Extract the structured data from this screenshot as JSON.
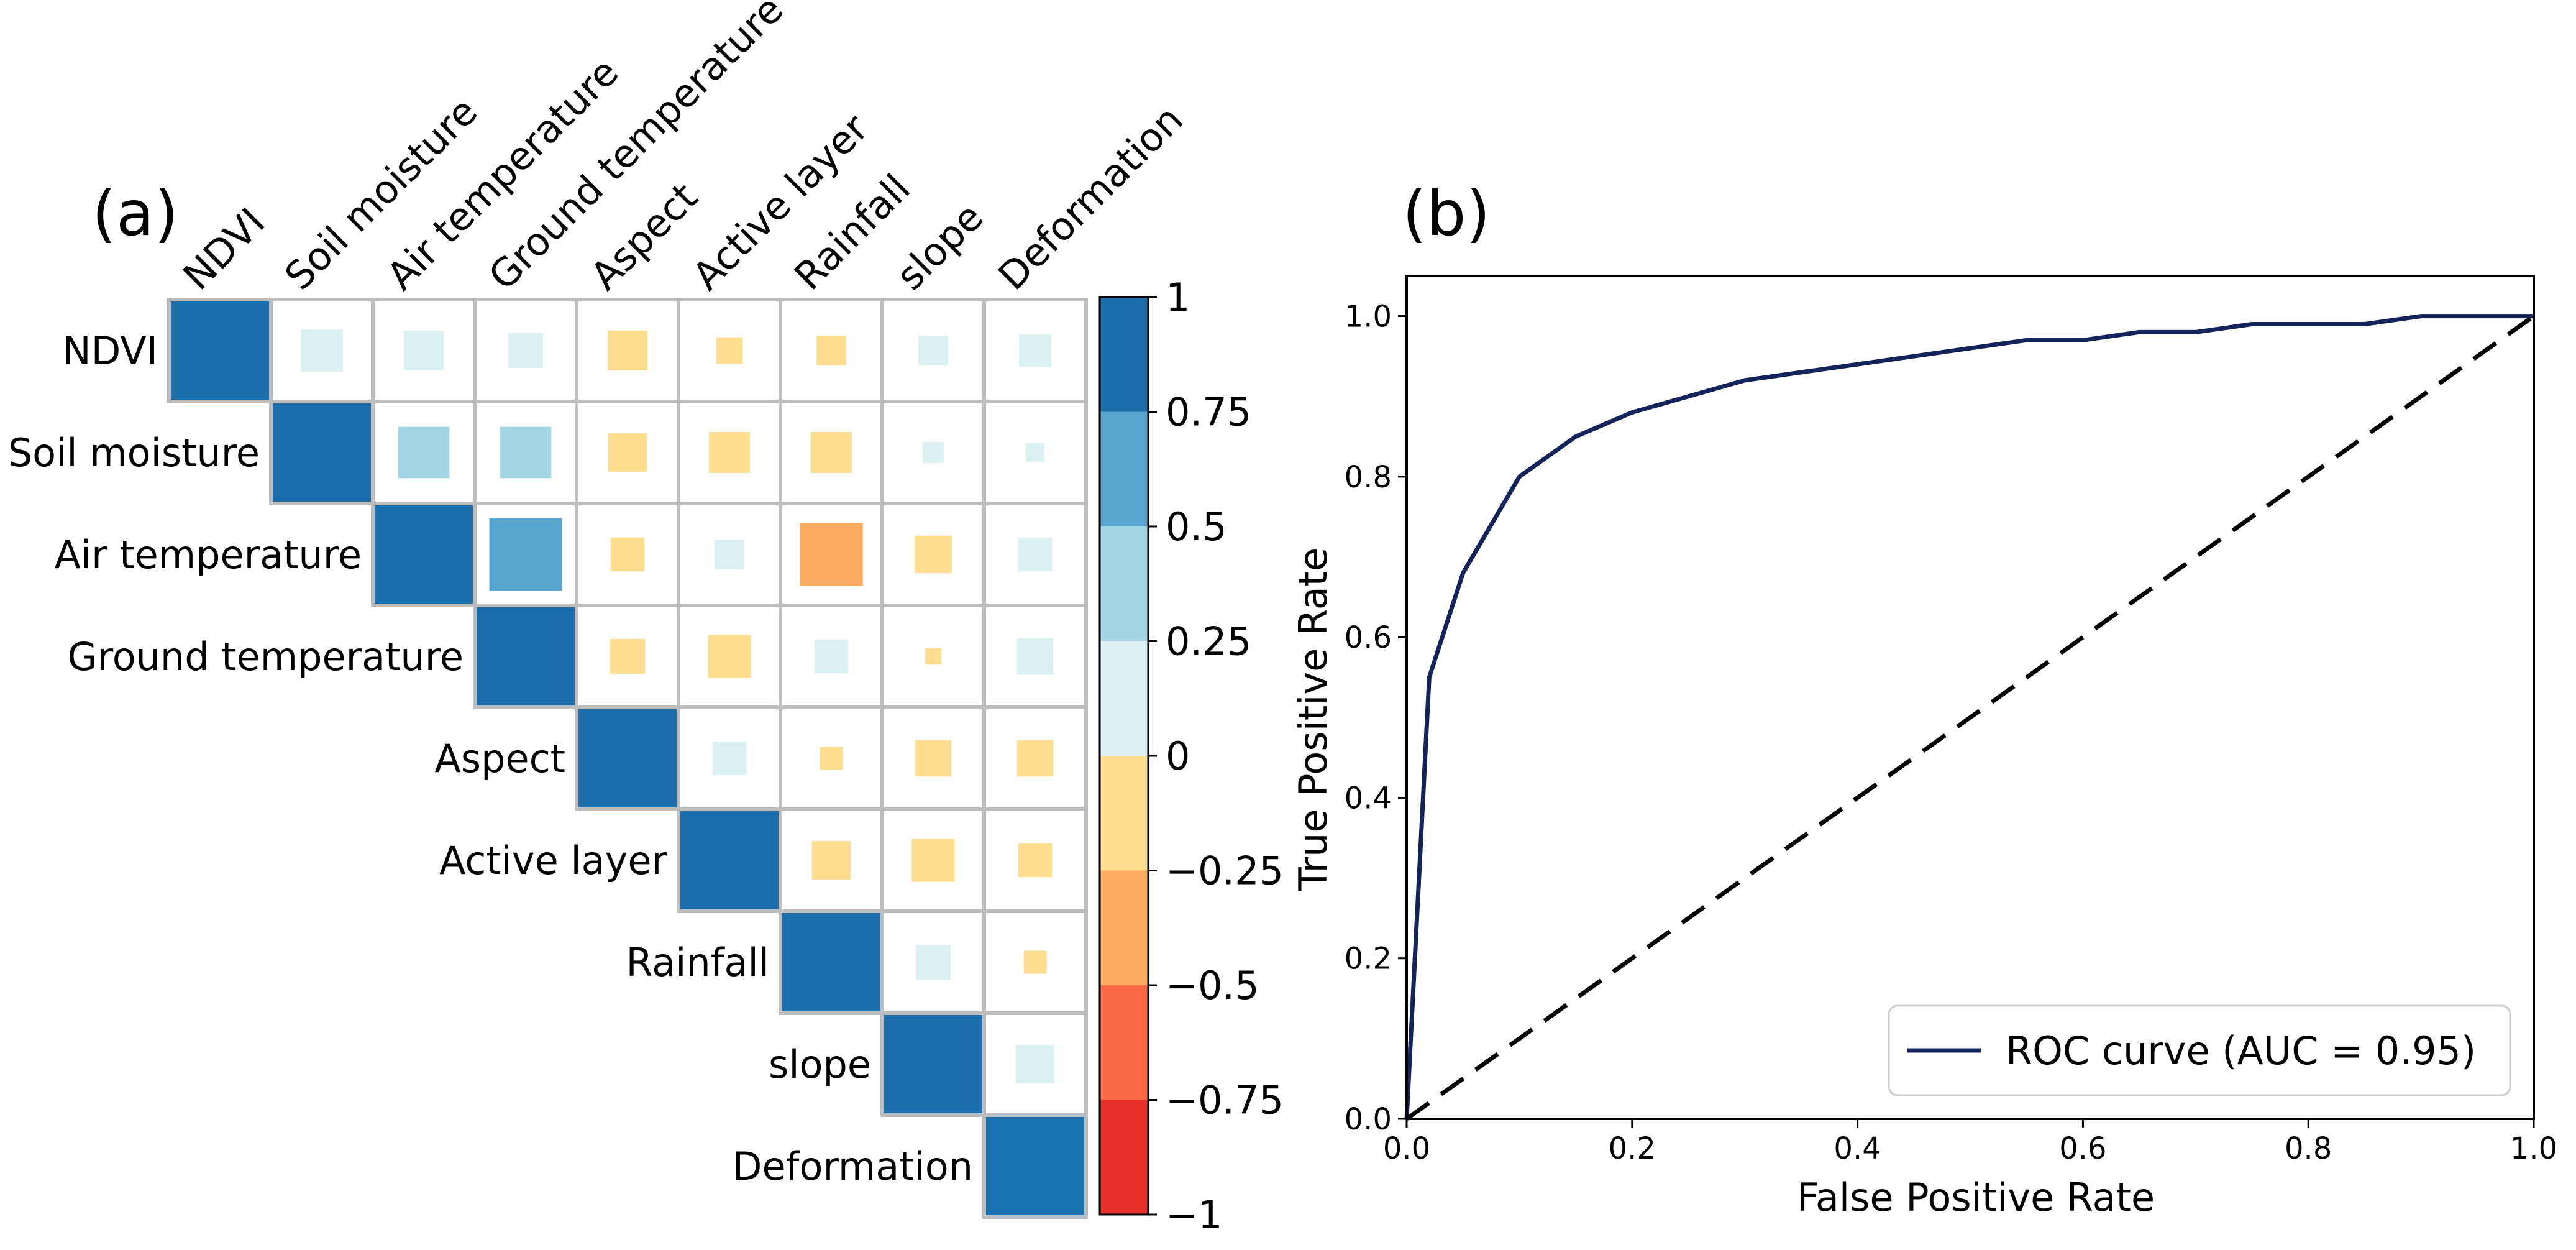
{
  "chart_data": [
    {
      "type": "heatmap",
      "panel_label": "(a)",
      "variables": [
        "NDVI",
        "Soil moisture",
        "Air temperature",
        "Ground temperature",
        "Aspect",
        "Active layer",
        "Rainfall",
        "slope",
        "Deformation"
      ],
      "matrix": [
        [
          1,
          0.2,
          0.18,
          0.14,
          -0.18,
          -0.08,
          -0.1,
          0.1,
          0.12
        ],
        [
          null,
          1,
          0.3,
          0.3,
          -0.17,
          -0.19,
          -0.19,
          0.05,
          0.04
        ],
        [
          null,
          null,
          1,
          0.6,
          -0.13,
          0.1,
          -0.45,
          -0.16,
          0.13
        ],
        [
          null,
          null,
          null,
          1,
          -0.14,
          -0.21,
          0.13,
          -0.03,
          0.15
        ],
        [
          null,
          null,
          null,
          null,
          1,
          0.13,
          -0.06,
          -0.15,
          -0.15
        ],
        [
          null,
          null,
          null,
          null,
          null,
          1,
          -0.17,
          -0.21,
          -0.13
        ],
        [
          null,
          null,
          null,
          null,
          null,
          null,
          1,
          0.14,
          -0.06
        ],
        [
          null,
          null,
          null,
          null,
          null,
          null,
          null,
          1,
          0.17
        ],
        [
          null,
          null,
          null,
          null,
          null,
          null,
          null,
          null,
          1
        ]
      ],
      "colorbar": {
        "range": [
          -1,
          1
        ],
        "boundaries": [
          -1,
          -0.75,
          -0.5,
          -0.25,
          0,
          0.25,
          0.5,
          0.75,
          1
        ],
        "colors": [
          "#e8302a",
          "#fc6a45",
          "#fdac62",
          "#ffdd8f",
          "#dbf0f3",
          "#a3d5e4",
          "#58a6cf",
          "#1d6ead"
        ],
        "tick_values": [
          1,
          0.75,
          0.5,
          0.25,
          0,
          -0.25,
          -0.5,
          -0.75,
          -1
        ],
        "tick_labels": [
          "1",
          "0.75",
          "0.5",
          "0.25",
          "0",
          "−0.25",
          "−0.5",
          "−0.75",
          "−1"
        ]
      },
      "diagonal_color": "#1d6ead",
      "last_diagonal_color": "#1a72b0",
      "grid_color": "#bdbdbd"
    },
    {
      "type": "line",
      "panel_label": "(b)",
      "xlabel": "False Positive Rate",
      "ylabel": "True Positive Rate",
      "xlim": [
        0,
        1
      ],
      "ylim": [
        0,
        1.05
      ],
      "xticks": [
        0,
        0.2,
        0.4,
        0.6,
        0.8,
        1
      ],
      "yticks": [
        0,
        0.2,
        0.4,
        0.6,
        0.8,
        1
      ],
      "xtick_labels": [
        "0.0",
        "0.2",
        "0.4",
        "0.6",
        "0.8",
        "1.0"
      ],
      "ytick_labels": [
        "0.0",
        "0.2",
        "0.4",
        "0.6",
        "0.8",
        "1.0"
      ],
      "series": [
        {
          "name": "ROC curve (AUC = 0.95)",
          "color": "#14245a",
          "style": "solid",
          "x": [
            0,
            0.02,
            0.05,
            0.1,
            0.15,
            0.2,
            0.3,
            0.4,
            0.5,
            0.55,
            0.6,
            0.65,
            0.7,
            0.75,
            0.8,
            0.85,
            0.9,
            1
          ],
          "y": [
            0,
            0.55,
            0.68,
            0.8,
            0.85,
            0.88,
            0.92,
            0.94,
            0.96,
            0.97,
            0.97,
            0.98,
            0.98,
            0.99,
            0.99,
            0.99,
            1,
            1
          ]
        },
        {
          "name": "",
          "color": "#000000",
          "style": "dashed",
          "x": [
            0,
            1
          ],
          "y": [
            0,
            1
          ]
        }
      ],
      "legend_label": "ROC curve (AUC = 0.95)",
      "legend_position": "lower-right"
    }
  ]
}
